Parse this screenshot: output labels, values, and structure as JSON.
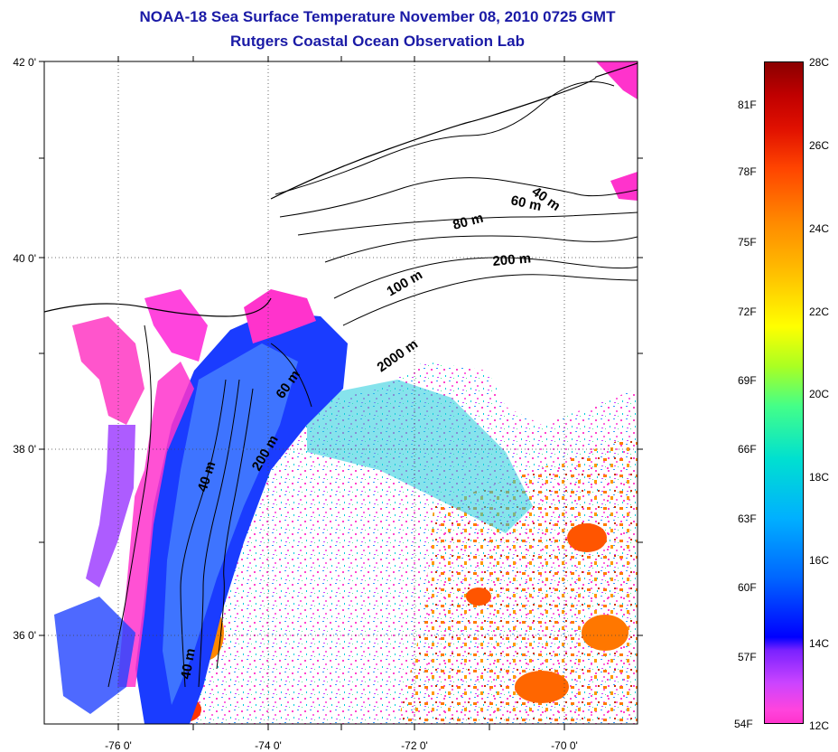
{
  "title_line1": "NOAA-18 Sea Surface Temperature November 08, 2010 0725 GMT",
  "title_line2": "Rutgers Coastal Ocean Observation Lab",
  "axes": {
    "y_ticks": [
      "42 0'",
      "40 0'",
      "38 0'",
      "36 0'"
    ],
    "x_ticks": [
      "-76 0'",
      "-74 0'",
      "-72 0'",
      "-70 0'"
    ],
    "lat_range": [
      35,
      42
    ],
    "lon_range": [
      -77,
      -69
    ]
  },
  "bathymetry_labels": [
    "40 m",
    "60 m",
    "80 m",
    "200 m",
    "100 m",
    "2000 m",
    "60 m",
    "40 m",
    "200 m",
    "40 m"
  ],
  "colorbar": {
    "fahrenheit": [
      "81F",
      "78F",
      "75F",
      "72F",
      "69F",
      "66F",
      "63F",
      "60F",
      "57F",
      "54F"
    ],
    "celsius": [
      "28C",
      "26C",
      "24C",
      "22C",
      "20C",
      "18C",
      "16C",
      "14C",
      "12C"
    ],
    "range_c": [
      12,
      28
    ]
  },
  "colors": {
    "title": "#1a1aa6",
    "cold": "#ff33cc",
    "mid_cold": "#0000ff",
    "mid": "#00e0d0",
    "warm": "#ff6600"
  }
}
